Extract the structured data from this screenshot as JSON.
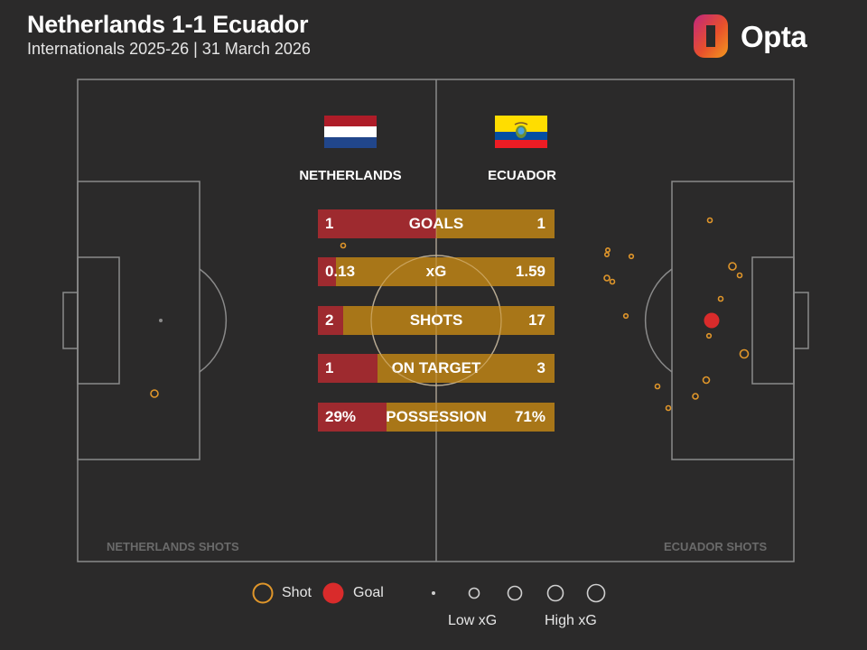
{
  "header": {
    "title": "Netherlands 1-1 Ecuador",
    "subtitle": "Internationals 2025-26 | 31 March 2026",
    "brand": "Opta"
  },
  "teams": {
    "home": {
      "name": "NETHERLANDS",
      "shots_label": "NETHERLANDS SHOTS",
      "color": "#9e2a2f"
    },
    "away": {
      "name": "ECUADOR",
      "shots_label": "ECUADOR SHOTS",
      "color": "#a87618"
    }
  },
  "stats": [
    {
      "label": "GOALS",
      "home": "1",
      "away": "1",
      "home_share": 0.5
    },
    {
      "label": "xG",
      "home": "0.13",
      "away": "1.59",
      "home_share": 0.076
    },
    {
      "label": "SHOTS",
      "home": "2",
      "away": "17",
      "home_share": 0.105
    },
    {
      "label": "ON TARGET",
      "home": "1",
      "away": "3",
      "home_share": 0.25
    },
    {
      "label": "POSSESSION",
      "home": "29%",
      "away": "71%",
      "home_share": 0.29
    }
  ],
  "legend": {
    "shot": "Shot",
    "goal": "Goal",
    "low_xg": "Low xG",
    "high_xg": "High xG"
  },
  "colors": {
    "background": "#2b2a2a",
    "pitch_lines": "#8a8a8a",
    "shot": "#e0962a",
    "goal": "#d92b2b"
  }
}
